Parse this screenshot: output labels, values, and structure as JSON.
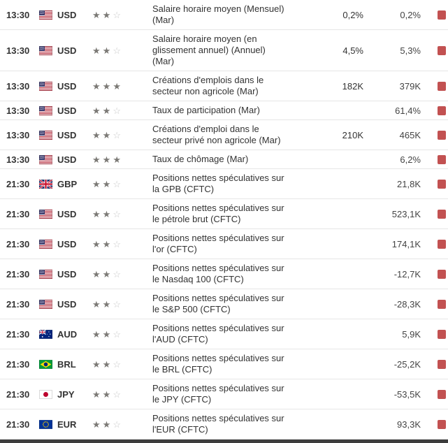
{
  "colors": {
    "alert-red": "#c25151",
    "star-filled": "#7b7975",
    "star-empty": "#c9c9c9",
    "row-border": "#e6e6e6",
    "footer-bar": "#3d3d3d",
    "text-dark": "#333333",
    "text-value": "#444444"
  },
  "icons": {
    "importance_filled": "star-filled",
    "importance_empty": "star-empty",
    "alert": "red-alert-marker"
  },
  "table": {
    "importance_max": 3,
    "rows": [
      {
        "time": "13:30",
        "currency": "USD",
        "flag": "us",
        "importance": 2,
        "event": "Salaire horaire moyen (Mensuel) (Mar)",
        "forecast": "0,2%",
        "previous": "0,2%"
      },
      {
        "time": "13:30",
        "currency": "USD",
        "flag": "us",
        "importance": 2,
        "event": "Salaire horaire moyen (en glissement annuel) (Annuel) (Mar)",
        "forecast": "4,5%",
        "previous": "5,3%"
      },
      {
        "time": "13:30",
        "currency": "USD",
        "flag": "us",
        "importance": 3,
        "event": "Créations d'emplois dans le secteur non agricole (Mar)",
        "forecast": "182K",
        "previous": "379K"
      },
      {
        "time": "13:30",
        "currency": "USD",
        "flag": "us",
        "importance": 2,
        "event": "Taux de participation (Mar)",
        "forecast": "",
        "previous": "61,4%"
      },
      {
        "time": "13:30",
        "currency": "USD",
        "flag": "us",
        "importance": 2,
        "event": "Créations d'emploi dans le secteur privé non agricole (Mar)",
        "forecast": "210K",
        "previous": "465K"
      },
      {
        "time": "13:30",
        "currency": "USD",
        "flag": "us",
        "importance": 3,
        "event": "Taux de chômage (Mar)",
        "forecast": "",
        "previous": "6,2%"
      },
      {
        "time": "21:30",
        "currency": "GBP",
        "flag": "gb",
        "importance": 2,
        "event": "Positions nettes spéculatives sur la GPB (CFTC)",
        "forecast": "",
        "previous": "21,8K"
      },
      {
        "time": "21:30",
        "currency": "USD",
        "flag": "us",
        "importance": 2,
        "event": "Positions nettes spéculatives sur le pétrole brut (CFTC)",
        "forecast": "",
        "previous": "523,1K"
      },
      {
        "time": "21:30",
        "currency": "USD",
        "flag": "us",
        "importance": 2,
        "event": "Positions nettes spéculatives sur l'or (CFTC)",
        "forecast": "",
        "previous": "174,1K"
      },
      {
        "time": "21:30",
        "currency": "USD",
        "flag": "us",
        "importance": 2,
        "event": "Positions nettes spéculatives sur le Nasdaq 100 (CFTC)",
        "forecast": "",
        "previous": "-12,7K"
      },
      {
        "time": "21:30",
        "currency": "USD",
        "flag": "us",
        "importance": 2,
        "event": "Positions nettes spéculatives sur le S&P 500 (CFTC)",
        "forecast": "",
        "previous": "-28,3K"
      },
      {
        "time": "21:30",
        "currency": "AUD",
        "flag": "au",
        "importance": 2,
        "event": "Positions nettes spéculatives sur l'AUD (CFTC)",
        "forecast": "",
        "previous": "5,9K"
      },
      {
        "time": "21:30",
        "currency": "BRL",
        "flag": "br",
        "importance": 2,
        "event": "Positions nettes spéculatives sur le BRL (CFTC)",
        "forecast": "",
        "previous": "-25,2K"
      },
      {
        "time": "21:30",
        "currency": "JPY",
        "flag": "jp",
        "importance": 2,
        "event": "Positions nettes spéculatives sur le JPY (CFTC)",
        "forecast": "",
        "previous": "-53,5K"
      },
      {
        "time": "21:30",
        "currency": "EUR",
        "flag": "eu",
        "importance": 2,
        "event": "Positions nettes spéculatives sur l'EUR (CFTC)",
        "forecast": "",
        "previous": "93,3K"
      }
    ]
  }
}
